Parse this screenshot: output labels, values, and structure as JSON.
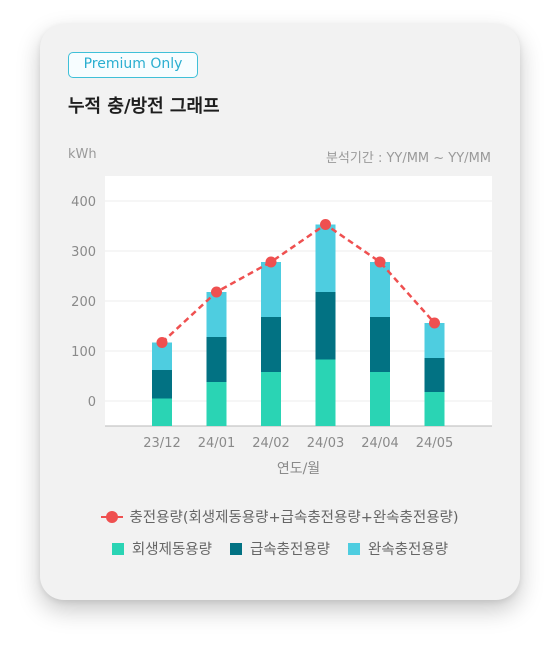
{
  "badge": "Premium Only",
  "title": "누적 충/방전 그래프",
  "unit_label": "kWh",
  "period_label": "분석기간 : YY/MM ~ YY/MM",
  "colors": {
    "regen": "#2ad4b4",
    "fast": "#027283",
    "slow": "#4ecde0",
    "total_line": "#ef5050"
  },
  "chart_data": {
    "type": "bar",
    "stacked": true,
    "categories": [
      "23/12",
      "24/01",
      "24/02",
      "24/03",
      "24/04",
      "24/05"
    ],
    "series": [
      {
        "name": "회생제동용량",
        "values": [
          5,
          38,
          58,
          83,
          58,
          18
        ]
      },
      {
        "name": "급속충전용량",
        "values": [
          57,
          90,
          110,
          135,
          110,
          68
        ]
      },
      {
        "name": "완속충전용량",
        "values": [
          55,
          90,
          110,
          135,
          110,
          70
        ]
      }
    ],
    "line": {
      "name": "충전용량(회생제동용량+급속충전용량+완속충전용량)",
      "values": [
        117,
        218,
        278,
        353,
        278,
        156
      ]
    },
    "xlabel": "연도/월",
    "ylabel": "kWh",
    "ylim": [
      -50,
      450
    ],
    "yticks": [
      0,
      100,
      200,
      300,
      400
    ],
    "grid": true,
    "legend": "bottom"
  }
}
